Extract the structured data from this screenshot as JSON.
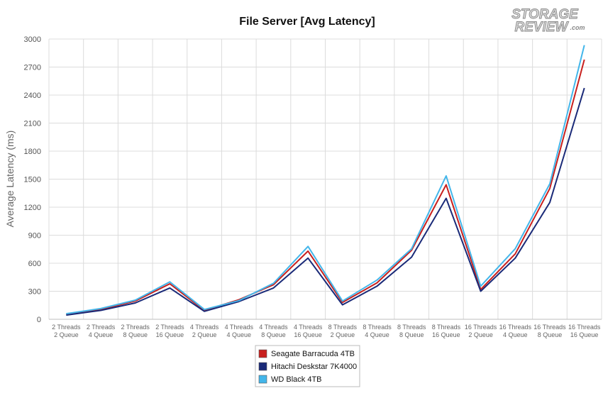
{
  "chart_data": {
    "type": "line",
    "title": "File Server [Avg Latency]",
    "xlabel": "",
    "ylabel": "Average Latency (ms)",
    "ylim": [
      0,
      3000
    ],
    "yticks": [
      0,
      300,
      600,
      900,
      1200,
      1500,
      1800,
      2100,
      2400,
      2700,
      3000
    ],
    "grid": true,
    "legend_position": "bottom-center",
    "categories": [
      [
        "2 Threads",
        "2 Queue"
      ],
      [
        "2 Threads",
        "4 Queue"
      ],
      [
        "2 Threads",
        "8 Queue"
      ],
      [
        "2 Threads",
        "16 Queue"
      ],
      [
        "4 Threads",
        "2 Queue"
      ],
      [
        "4 Threads",
        "4 Queue"
      ],
      [
        "4 Threads",
        "8 Queue"
      ],
      [
        "4 Threads",
        "16 Queue"
      ],
      [
        "8 Threads",
        "2 Queue"
      ],
      [
        "8 Threads",
        "4 Queue"
      ],
      [
        "8 Threads",
        "8 Queue"
      ],
      [
        "8 Threads",
        "16 Queue"
      ],
      [
        "16 Threads",
        "2 Queue"
      ],
      [
        "16 Threads",
        "4 Queue"
      ],
      [
        "16 Threads",
        "8 Queue"
      ],
      [
        "16 Threads",
        "16 Queue"
      ]
    ],
    "series": [
      {
        "name": "Seagate Barracuda 4TB",
        "color": "#c8201e",
        "values": [
          55,
          105,
          195,
          380,
          95,
          210,
          370,
          730,
          180,
          390,
          740,
          1440,
          320,
          700,
          1400,
          2780
        ]
      },
      {
        "name": "Hitachi Deskstar 7K4000",
        "color": "#1a2a78",
        "values": [
          45,
          95,
          175,
          335,
          85,
          190,
          335,
          655,
          155,
          355,
          665,
          1295,
          300,
          655,
          1250,
          2475
        ]
      },
      {
        "name": "WD Black 4TB",
        "color": "#43b6ea",
        "values": [
          60,
          115,
          205,
          400,
          105,
          200,
          385,
          780,
          195,
          420,
          755,
          1535,
          355,
          755,
          1450,
          2935
        ]
      }
    ]
  },
  "logo": {
    "line1": "STORAGE",
    "line2": "REVIEW",
    "suffix": ".com"
  }
}
